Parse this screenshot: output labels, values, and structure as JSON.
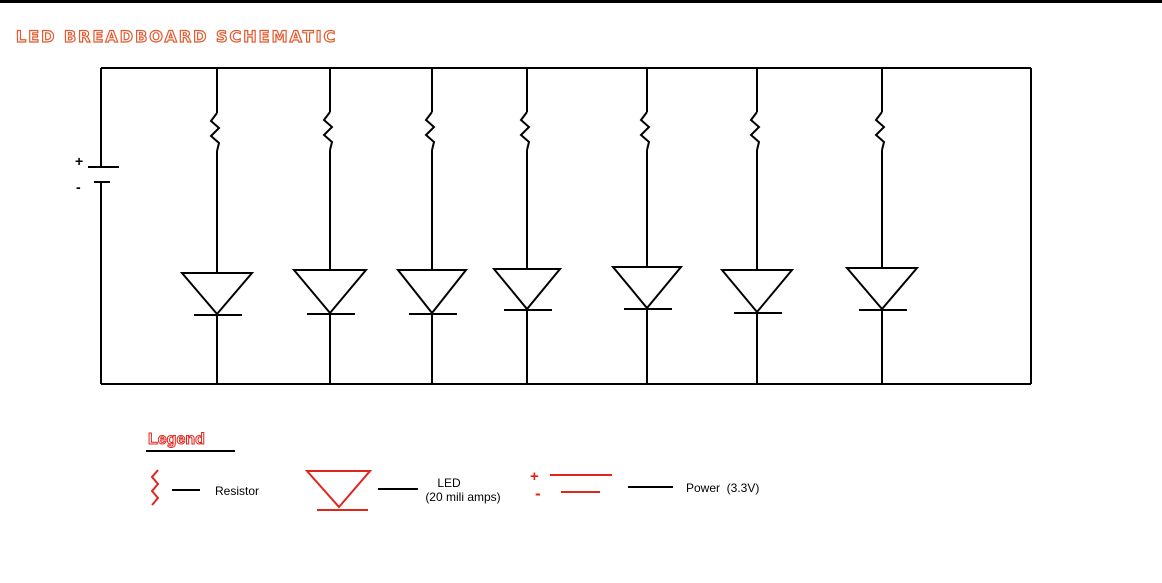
{
  "title": "LED BREADBOARD SCHEMATIC",
  "battery": {
    "plus_label": "+",
    "minus_label": "-"
  },
  "legend": {
    "heading": "Legend",
    "resistor_label": "Resistor",
    "led_label_line1": "LED",
    "led_label_line2": "(20 mili amps)",
    "power_plus": "+",
    "power_minus": "-",
    "power_label": "Power  (3.3V)"
  },
  "colors": {
    "wire": "#000000",
    "legend_accent": "#e0251b",
    "title_outline": "#e35a2e"
  },
  "branch_count": 7
}
